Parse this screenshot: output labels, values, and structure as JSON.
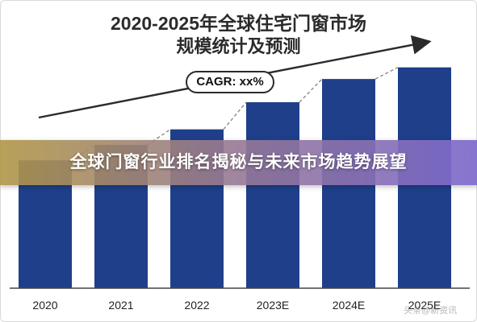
{
  "colors": {
    "bar": "#1f3f8a",
    "axis": "#444444",
    "text": "#2b2b2b",
    "banner_from": "#b09646",
    "banner_to": "#7d69cd"
  },
  "overlay": {
    "banner_text": "全球门窗行业排名揭秘与未来市场趋势展望"
  },
  "watermark": "头条@新资讯",
  "chart_data": {
    "type": "bar",
    "title": "2020-2025年全球住宅门窗市场",
    "subtitle": "规模统计及预测",
    "annotation": "CAGR: xx%",
    "xlabel": "",
    "ylabel": "",
    "categories": [
      "2020",
      "2021",
      "2022",
      "2023E",
      "2024E",
      "2025E"
    ],
    "values": [
      33,
      37,
      41,
      48,
      54,
      57
    ],
    "ylim": [
      0,
      64
    ],
    "grid": false,
    "trend_arrow": true,
    "dashed_connectors": true
  }
}
